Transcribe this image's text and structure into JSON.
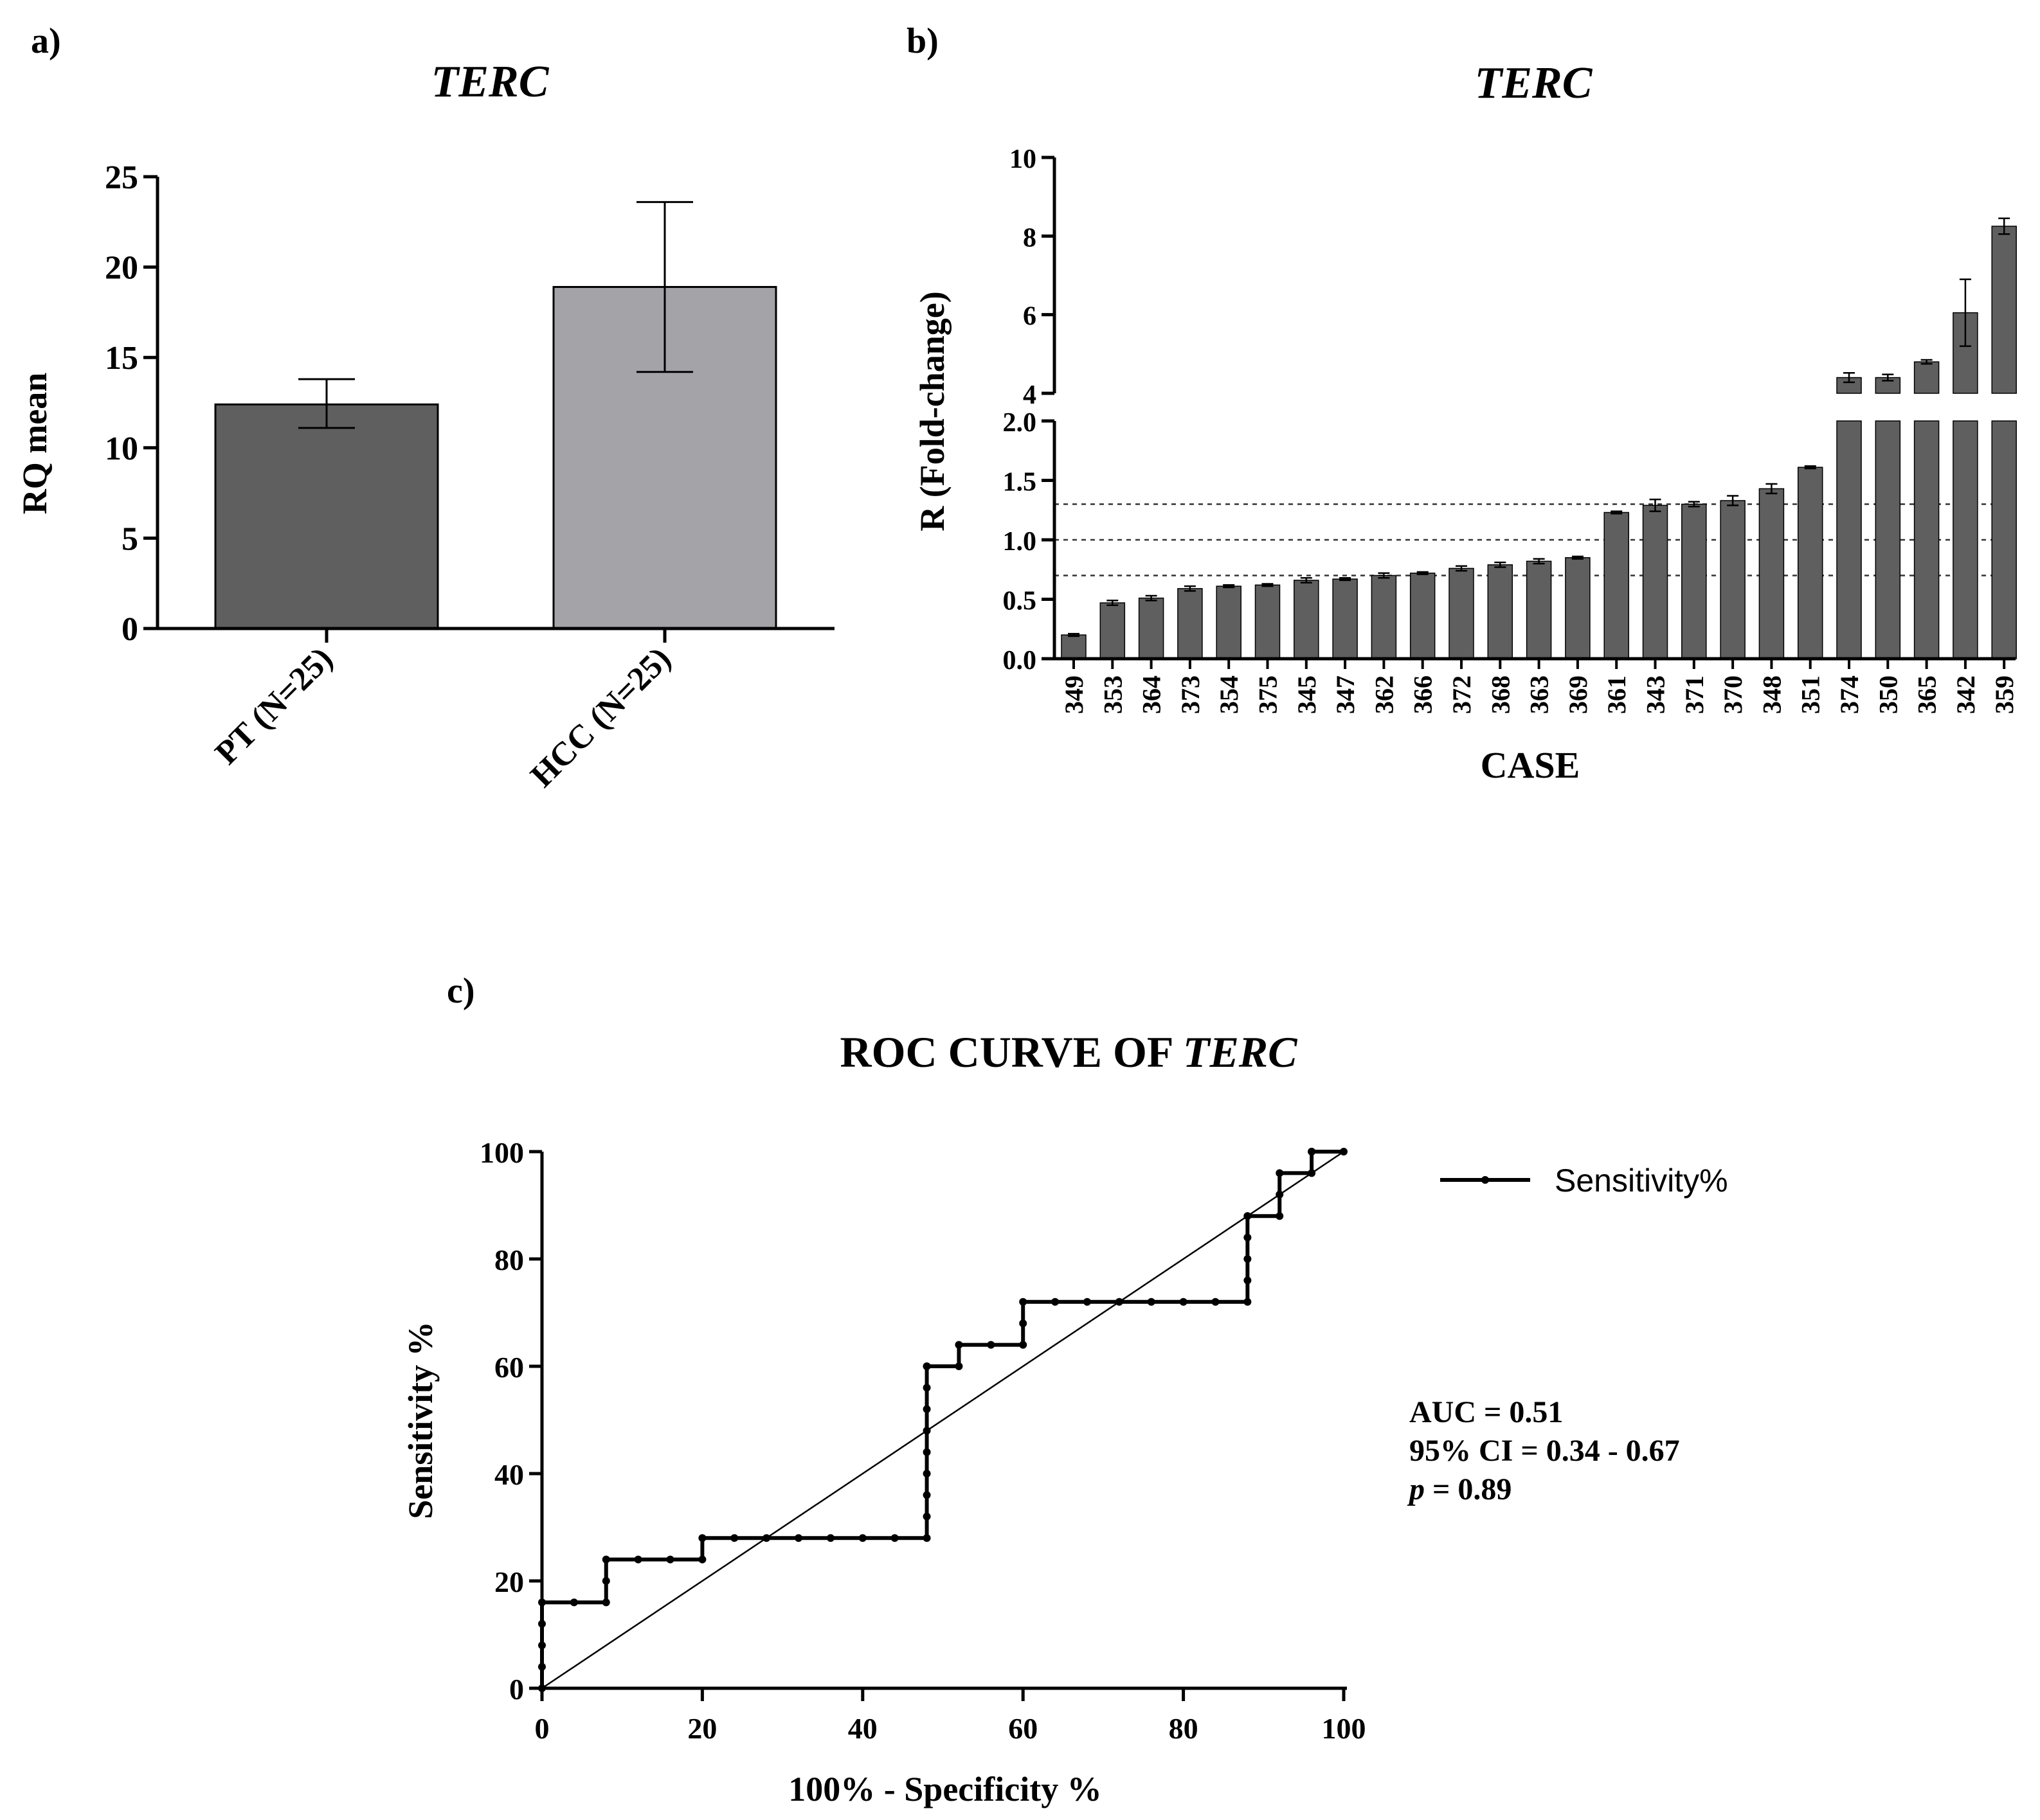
{
  "chart_data": [
    {
      "panel": "a)",
      "type": "bar",
      "title": "TERC",
      "ylabel": "RQ mean",
      "xlabel": "",
      "ylim": [
        0,
        25
      ],
      "yticks": [
        "0",
        "5",
        "10",
        "15",
        "20",
        "25"
      ],
      "categories": [
        "PT (N=25)",
        "HCC (N=25)"
      ],
      "values": [
        12.4,
        18.9
      ],
      "error_low": [
        11.1,
        14.2
      ],
      "error_high": [
        13.8,
        23.6
      ],
      "colors": [
        "#5f5f5f",
        "#a4a4a8"
      ]
    },
    {
      "panel": "b)",
      "type": "bar",
      "title": "TERC",
      "ylabel": "R (Fold-change)",
      "xlabel": "CASE",
      "axis_break": {
        "lower": [
          0,
          2.0
        ],
        "upper": [
          4,
          10
        ]
      },
      "yticks_lower": [
        "0.0",
        "0.5",
        "1.0",
        "1.5",
        "2.0"
      ],
      "yticks_upper": [
        "4",
        "6",
        "8",
        "10"
      ],
      "reference_lines": [
        0.7,
        1.0,
        1.3
      ],
      "categories": [
        "349",
        "353",
        "364",
        "373",
        "354",
        "375",
        "345",
        "347",
        "362",
        "366",
        "372",
        "368",
        "363",
        "369",
        "361",
        "343",
        "371",
        "370",
        "348",
        "351",
        "374",
        "350",
        "365",
        "342",
        "359"
      ],
      "values": [
        0.2,
        0.47,
        0.51,
        0.59,
        0.61,
        0.62,
        0.66,
        0.67,
        0.7,
        0.72,
        0.76,
        0.79,
        0.82,
        0.85,
        1.23,
        1.29,
        1.3,
        1.33,
        1.43,
        1.61,
        4.4,
        4.4,
        4.8,
        6.05,
        8.25
      ],
      "errors": [
        0.01,
        0.02,
        0.02,
        0.02,
        0.01,
        0.01,
        0.02,
        0.01,
        0.02,
        0.01,
        0.02,
        0.02,
        0.02,
        0.01,
        0.01,
        0.05,
        0.02,
        0.04,
        0.04,
        0.01,
        0.12,
        0.08,
        0.05,
        0.85,
        0.2
      ],
      "color": "#5f5f5f"
    },
    {
      "panel": "c)",
      "type": "line",
      "title_prefix": "ROC CURVE OF ",
      "title_gene": "TERC",
      "xlabel": "100% - Specificity %",
      "ylabel": "Sensitivity %",
      "xlim": [
        0,
        100
      ],
      "ylim": [
        0,
        100
      ],
      "xticks": [
        "0",
        "20",
        "40",
        "60",
        "80",
        "100"
      ],
      "yticks": [
        "0",
        "20",
        "40",
        "60",
        "80",
        "100"
      ],
      "series": [
        {
          "name": "Sensitivity%",
          "x": [
            0,
            0,
            0,
            0,
            0,
            4,
            8,
            8,
            8,
            12,
            16,
            20,
            20,
            24,
            28,
            32,
            36,
            40,
            44,
            48,
            48,
            48,
            48,
            48,
            48,
            48,
            48,
            48,
            48,
            52,
            52,
            56,
            60,
            60,
            60,
            64,
            68,
            72,
            76,
            80,
            84,
            88,
            88,
            88,
            88,
            88,
            88,
            92,
            92,
            92,
            96,
            96,
            96,
            100
          ],
          "y": [
            0,
            4,
            8,
            12,
            16,
            16,
            16,
            20,
            24,
            24,
            24,
            24,
            28,
            28,
            28,
            28,
            28,
            28,
            28,
            28,
            32,
            36,
            40,
            44,
            48,
            52,
            56,
            60,
            60,
            60,
            64,
            64,
            64,
            68,
            72,
            72,
            72,
            72,
            72,
            72,
            72,
            72,
            76,
            80,
            84,
            88,
            88,
            88,
            92,
            96,
            96,
            100,
            100,
            100
          ]
        },
        {
          "name": "reference diagonal",
          "x": [
            0,
            100
          ],
          "y": [
            0,
            100
          ]
        }
      ],
      "legend": "Sensitivity%",
      "legend_position": "top-right",
      "annotation": {
        "auc": "AUC = 0.51",
        "ci": "95% CI = 0.34 - 0.67",
        "p_symbol": "p",
        "p_value": " = 0.89"
      }
    }
  ]
}
